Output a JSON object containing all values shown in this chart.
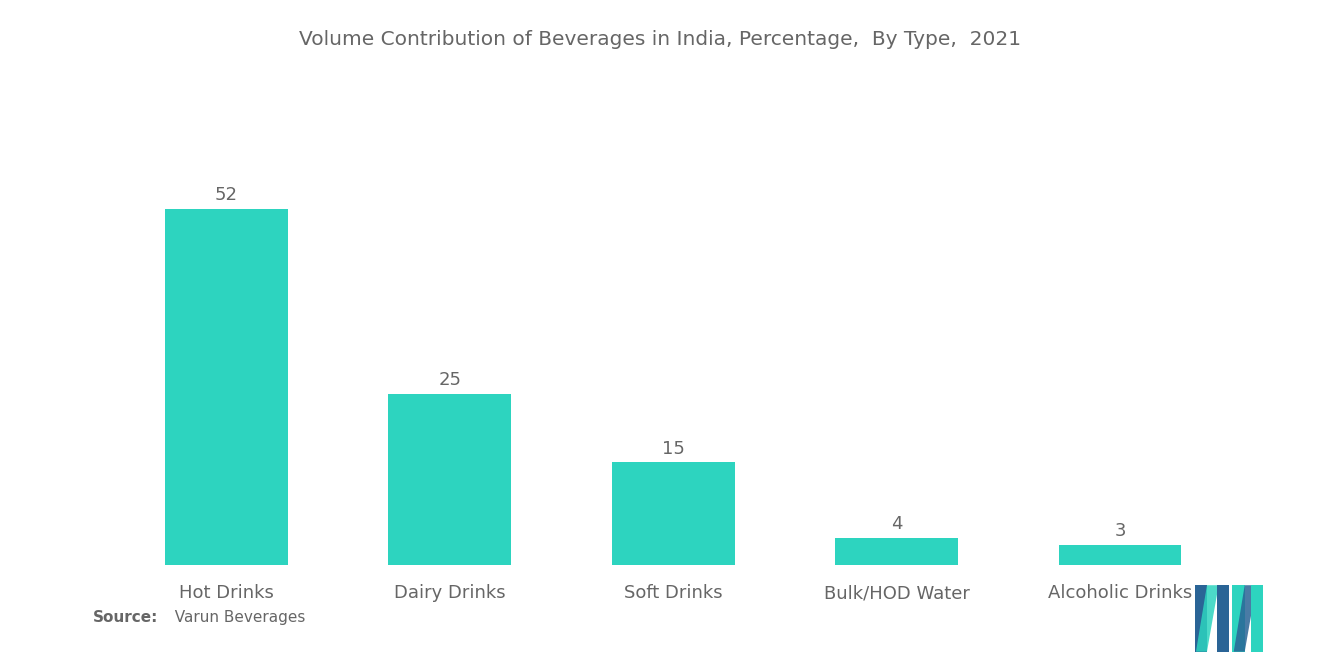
{
  "title": "Volume Contribution of Beverages in India, Percentage,  By Type,  2021",
  "categories": [
    "Hot Drinks",
    "Dairy Drinks",
    "Soft Drinks",
    "Bulk/HOD Water",
    "Alcoholic Drinks"
  ],
  "values": [
    52,
    25,
    15,
    4,
    3
  ],
  "bar_color": "#2DD4BF",
  "background_color": "#FFFFFF",
  "text_color": "#666666",
  "title_fontsize": 14.5,
  "label_fontsize": 13,
  "value_fontsize": 13,
  "source_bold": "Source:",
  "source_normal": "  Varun Beverages",
  "ylim": [
    0,
    65
  ],
  "bar_width": 0.55
}
